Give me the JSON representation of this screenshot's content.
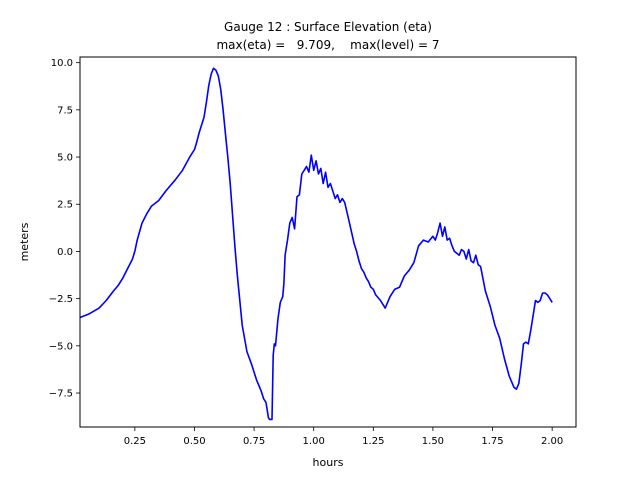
{
  "chart_data": {
    "type": "line",
    "title": "Gauge 12 : Surface Elevation (eta)",
    "subtitle": "max(eta) =   9.709,    max(level) = 7",
    "xlabel": "hours",
    "ylabel": "meters",
    "xlim": [
      0.02,
      2.1
    ],
    "ylim": [
      -9.3,
      10.3
    ],
    "x_ticks": [
      0.25,
      0.5,
      0.75,
      1.0,
      1.25,
      1.5,
      1.75,
      2.0
    ],
    "x_tick_labels": [
      "0.25",
      "0.50",
      "0.75",
      "1.00",
      "1.25",
      "1.50",
      "1.75",
      "2.00"
    ],
    "y_ticks": [
      -7.5,
      -5.0,
      -2.5,
      0.0,
      2.5,
      5.0,
      7.5,
      10.0
    ],
    "y_tick_labels": [
      "−7.5",
      "−5.0",
      "−2.5",
      "0.0",
      "2.5",
      "5.0",
      "7.5",
      "10.0"
    ],
    "grid": false,
    "series": [
      {
        "color": "#0000ff",
        "x": [
          0.02,
          0.06,
          0.1,
          0.13,
          0.16,
          0.18,
          0.2,
          0.22,
          0.24,
          0.25,
          0.26,
          0.28,
          0.3,
          0.32,
          0.35,
          0.38,
          0.42,
          0.45,
          0.48,
          0.5,
          0.51,
          0.52,
          0.54,
          0.55,
          0.56,
          0.57,
          0.58,
          0.59,
          0.6,
          0.61,
          0.62,
          0.63,
          0.64,
          0.65,
          0.66,
          0.67,
          0.68,
          0.69,
          0.7,
          0.72,
          0.74,
          0.76,
          0.78,
          0.79,
          0.8,
          0.81,
          0.815,
          0.82,
          0.825,
          0.83,
          0.835,
          0.84,
          0.85,
          0.86,
          0.87,
          0.875,
          0.88,
          0.89,
          0.9,
          0.91,
          0.92,
          0.93,
          0.94,
          0.95,
          0.96,
          0.97,
          0.98,
          0.99,
          1.0,
          1.01,
          1.02,
          1.03,
          1.04,
          1.05,
          1.06,
          1.07,
          1.08,
          1.09,
          1.1,
          1.11,
          1.12,
          1.13,
          1.15,
          1.17,
          1.18,
          1.19,
          1.2,
          1.21,
          1.22,
          1.23,
          1.24,
          1.25,
          1.26,
          1.28,
          1.3,
          1.32,
          1.34,
          1.36,
          1.38,
          1.4,
          1.42,
          1.44,
          1.46,
          1.48,
          1.5,
          1.51,
          1.52,
          1.53,
          1.54,
          1.55,
          1.56,
          1.57,
          1.58,
          1.59,
          1.6,
          1.61,
          1.62,
          1.63,
          1.64,
          1.65,
          1.66,
          1.67,
          1.68,
          1.69,
          1.7,
          1.72,
          1.74,
          1.76,
          1.78,
          1.8,
          1.82,
          1.84,
          1.85,
          1.86,
          1.87,
          1.88,
          1.89,
          1.9,
          1.91,
          1.92,
          1.93,
          1.94,
          1.95,
          1.96,
          1.97,
          1.98,
          1.99,
          2.0
        ],
        "y": [
          -3.5,
          -3.3,
          -3.0,
          -2.6,
          -2.1,
          -1.8,
          -1.4,
          -0.9,
          -0.4,
          0.0,
          0.6,
          1.5,
          2.0,
          2.4,
          2.7,
          3.2,
          3.8,
          4.3,
          5.0,
          5.4,
          5.8,
          6.3,
          7.1,
          7.9,
          8.8,
          9.4,
          9.7,
          9.6,
          9.3,
          8.6,
          7.5,
          6.2,
          5.0,
          3.6,
          1.9,
          0.2,
          -1.3,
          -2.6,
          -3.9,
          -5.3,
          -6.0,
          -6.8,
          -7.4,
          -7.8,
          -8.0,
          -8.8,
          -8.9,
          -8.9,
          -8.9,
          -5.5,
          -4.9,
          -5.0,
          -3.6,
          -2.7,
          -2.4,
          -1.7,
          -0.2,
          0.6,
          1.5,
          1.8,
          1.2,
          2.9,
          3.0,
          4.1,
          4.3,
          4.5,
          4.2,
          5.1,
          4.3,
          4.8,
          4.1,
          4.4,
          3.6,
          4.2,
          3.4,
          3.6,
          3.2,
          2.8,
          3.0,
          2.6,
          2.8,
          2.6,
          1.5,
          0.4,
          0.0,
          -0.5,
          -0.9,
          -1.1,
          -1.4,
          -1.6,
          -1.9,
          -2.0,
          -2.3,
          -2.6,
          -3.0,
          -2.4,
          -2.0,
          -1.9,
          -1.3,
          -1.0,
          -0.6,
          0.3,
          0.6,
          0.5,
          0.8,
          0.6,
          1.0,
          1.5,
          0.8,
          1.3,
          0.6,
          0.7,
          0.3,
          0.0,
          -0.1,
          -0.2,
          0.1,
          0.0,
          -0.4,
          0.1,
          -0.5,
          -0.6,
          -0.2,
          -0.7,
          -0.8,
          -2.1,
          -2.9,
          -3.9,
          -4.6,
          -5.7,
          -6.6,
          -7.2,
          -7.3,
          -7.0,
          -6.0,
          -4.9,
          -4.8,
          -4.9,
          -4.2,
          -3.4,
          -2.6,
          -2.7,
          -2.6,
          -2.2,
          -2.2,
          -2.3,
          -2.5,
          -2.7
        ]
      }
    ]
  }
}
